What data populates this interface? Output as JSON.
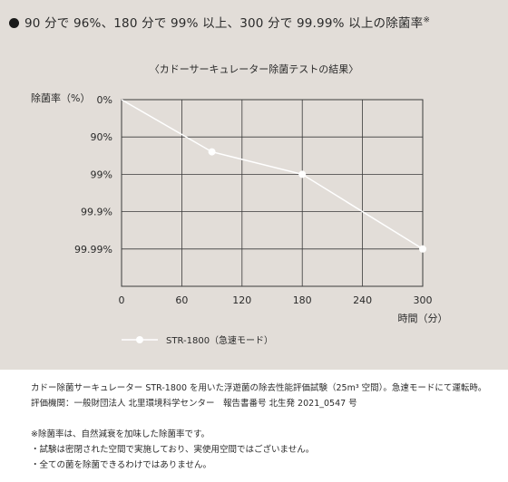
{
  "headline": {
    "text": "90 分で 96%、180 分で 99% 以上、300 分で 99.99% 以上の除菌率",
    "mark": "※"
  },
  "chart_data": {
    "type": "line",
    "title": "〈カドーサーキュレーター除菌テストの結果〉",
    "xlabel": "時間（分）",
    "ylabel": "除菌率（%）",
    "x_ticks": [
      "0",
      "60",
      "120",
      "180",
      "240",
      "300"
    ],
    "y_ticks": [
      "0%",
      "90%",
      "99%",
      "99.9%",
      "99.99%"
    ],
    "xlim": [
      0,
      300
    ],
    "ylim_log_reduction": [
      0,
      5
    ],
    "grid": true,
    "series": [
      {
        "name": "STR-1800（急速モード）",
        "color": "#ffffff",
        "x": [
          0,
          90,
          180,
          300
        ],
        "y": [
          0,
          96,
          99,
          99.99
        ]
      }
    ],
    "legend_position": "bottom-left"
  },
  "notes": {
    "line1": "カドー除菌サーキュレーター STR-1800 を用いた浮遊菌の除去性能評価試験（25m³ 空間）。急速モードにて運転時。",
    "line2": "評価機関：一般財団法人 北里環境科学センター　報告書番号 北生発 2021_0547 号",
    "line3": "※除菌率は、自然減衰を加味した除菌率です。",
    "line4": "・試験は密閉された空間で実施しており、実使用空間ではございません。",
    "line5": "・全ての菌を除菌できるわけではありません。"
  }
}
